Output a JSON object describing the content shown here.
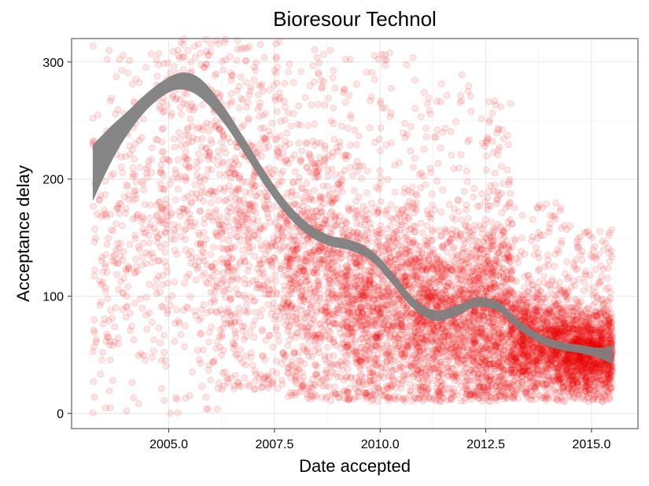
{
  "chart_data": {
    "type": "scatter",
    "title": "Bioresour Technol",
    "xlabel": "Date accepted",
    "ylabel": "Acceptance delay",
    "xlim": [
      2002.7,
      2016.1
    ],
    "ylim": [
      -13,
      320
    ],
    "x_ticks": [
      2005.0,
      2007.5,
      2010.0,
      2012.5,
      2015.0
    ],
    "x_tick_labels": [
      "2005.0",
      "2007.5",
      "2010.0",
      "2012.5",
      "2015.0"
    ],
    "y_ticks": [
      0,
      100,
      200,
      300
    ],
    "y_tick_labels": [
      "0",
      "100",
      "200",
      "300"
    ],
    "grid": true,
    "point_color": "#ee0000",
    "point_alpha": 0.1,
    "band_color": "#7f7f7f",
    "smooth_band": [
      {
        "x": 2003.2,
        "lower": 181,
        "upper": 229
      },
      {
        "x": 2003.6,
        "lower": 212,
        "upper": 244
      },
      {
        "x": 2004.0,
        "lower": 237,
        "upper": 257
      },
      {
        "x": 2004.5,
        "lower": 260,
        "upper": 274
      },
      {
        "x": 2005.0,
        "lower": 274,
        "upper": 287
      },
      {
        "x": 2005.4,
        "lower": 276,
        "upper": 291
      },
      {
        "x": 2005.8,
        "lower": 268,
        "upper": 284
      },
      {
        "x": 2006.3,
        "lower": 248,
        "upper": 262
      },
      {
        "x": 2006.8,
        "lower": 221,
        "upper": 234
      },
      {
        "x": 2007.3,
        "lower": 193,
        "upper": 205
      },
      {
        "x": 2007.8,
        "lower": 169,
        "upper": 180
      },
      {
        "x": 2008.3,
        "lower": 152,
        "upper": 162
      },
      {
        "x": 2008.8,
        "lower": 143,
        "upper": 152
      },
      {
        "x": 2009.3,
        "lower": 139,
        "upper": 148
      },
      {
        "x": 2009.8,
        "lower": 130,
        "upper": 139
      },
      {
        "x": 2010.3,
        "lower": 110,
        "upper": 120
      },
      {
        "x": 2010.8,
        "lower": 89,
        "upper": 98
      },
      {
        "x": 2011.3,
        "lower": 79,
        "upper": 88
      },
      {
        "x": 2011.8,
        "lower": 83,
        "upper": 92
      },
      {
        "x": 2012.3,
        "lower": 91,
        "upper": 99
      },
      {
        "x": 2012.8,
        "lower": 87,
        "upper": 95
      },
      {
        "x": 2013.3,
        "lower": 71,
        "upper": 79
      },
      {
        "x": 2013.8,
        "lower": 60,
        "upper": 67
      },
      {
        "x": 2014.3,
        "lower": 54,
        "upper": 61
      },
      {
        "x": 2014.8,
        "lower": 51,
        "upper": 58
      },
      {
        "x": 2015.2,
        "lower": 47,
        "upper": 56
      },
      {
        "x": 2015.5,
        "lower": 42,
        "upper": 58
      }
    ],
    "point_clusters": [
      {
        "x_range": [
          2003.2,
          2004.7
        ],
        "center": 150,
        "spread": 70,
        "min": 0,
        "max": 320,
        "count": 260
      },
      {
        "x_range": [
          2004.7,
          2006.2
        ],
        "center": 180,
        "spread": 80,
        "min": 0,
        "max": 320,
        "count": 420
      },
      {
        "x_range": [
          2006.2,
          2007.8
        ],
        "center": 150,
        "spread": 75,
        "min": 20,
        "max": 320,
        "count": 620
      },
      {
        "x_range": [
          2007.8,
          2009.2
        ],
        "center": 120,
        "spread": 60,
        "min": 10,
        "max": 320,
        "count": 800
      },
      {
        "x_range": [
          2009.2,
          2010.8
        ],
        "center": 95,
        "spread": 45,
        "min": 10,
        "max": 310,
        "count": 1100
      },
      {
        "x_range": [
          2010.8,
          2012.2
        ],
        "center": 80,
        "spread": 38,
        "min": 10,
        "max": 290,
        "count": 1100
      },
      {
        "x_range": [
          2012.2,
          2013.1
        ],
        "center": 82,
        "spread": 45,
        "min": 10,
        "max": 270,
        "count": 850
      },
      {
        "x_range": [
          2013.1,
          2014.4
        ],
        "center": 60,
        "spread": 22,
        "min": 10,
        "max": 180,
        "count": 1200
      },
      {
        "x_range": [
          2014.4,
          2015.5
        ],
        "center": 52,
        "spread": 18,
        "min": 10,
        "max": 160,
        "count": 1300
      }
    ]
  }
}
